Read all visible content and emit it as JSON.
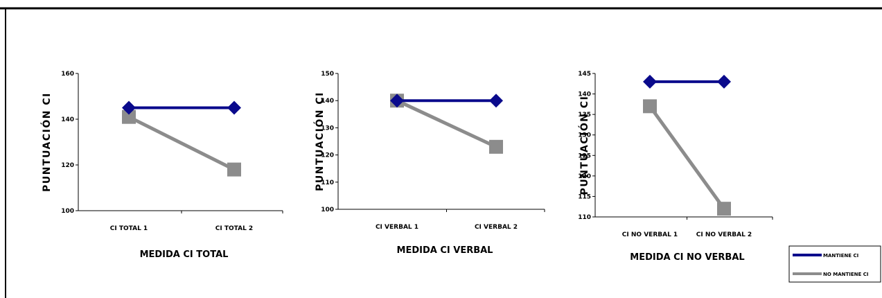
{
  "chart_data": [
    {
      "type": "line",
      "categories": [
        "CI TOTAL 1",
        "CI TOTAL 2"
      ],
      "series": [
        {
          "name": "MANTIENE CI",
          "values": [
            145,
            145
          ],
          "color": "#0A0A8C",
          "marker": "diamond"
        },
        {
          "name": "NO MANTIENE CI",
          "values": [
            141,
            118
          ],
          "color": "#8C8C8C",
          "marker": "square"
        }
      ],
      "xlabel": "MEDIDA CI TOTAL",
      "ylabel": "PUNTUACIÓN CI",
      "ylim": [
        100,
        160
      ],
      "yticks": [
        100,
        120,
        140,
        160
      ]
    },
    {
      "type": "line",
      "categories": [
        "CI VERBAL 1",
        "CI VERBAL 2"
      ],
      "series": [
        {
          "name": "MANTIENE CI",
          "values": [
            140,
            140
          ],
          "color": "#0A0A8C",
          "marker": "diamond"
        },
        {
          "name": "NO MANTIENE CI",
          "values": [
            140,
            123
          ],
          "color": "#8C8C8C",
          "marker": "square"
        }
      ],
      "xlabel": "MEDIDA CI VERBAL",
      "ylabel": "PUNTUACIÓN CI",
      "ylim": [
        100,
        150
      ],
      "yticks": [
        100,
        110,
        120,
        130,
        140,
        150
      ]
    },
    {
      "type": "line",
      "categories": [
        "CI NO VERBAL 1",
        "CI NO VERBAL 2"
      ],
      "series": [
        {
          "name": "MANTIENE CI",
          "values": [
            143,
            143
          ],
          "color": "#0A0A8C",
          "marker": "diamond"
        },
        {
          "name": "NO MANTIENE CI",
          "values": [
            137,
            112
          ],
          "color": "#8C8C8C",
          "marker": "square"
        }
      ],
      "xlabel": "MEDIDA CI NO VERBAL",
      "ylabel": "PUNTUACIÓN CI",
      "ylim": [
        110,
        145
      ],
      "yticks": [
        110,
        115,
        120,
        125,
        130,
        135,
        140,
        145
      ]
    }
  ],
  "legend": {
    "position": "bottom-right",
    "items": [
      {
        "label": "MANTIENE CI",
        "color": "#0A0A8C"
      },
      {
        "label": "NO MANTIENE CI",
        "color": "#8C8C8C"
      }
    ]
  }
}
